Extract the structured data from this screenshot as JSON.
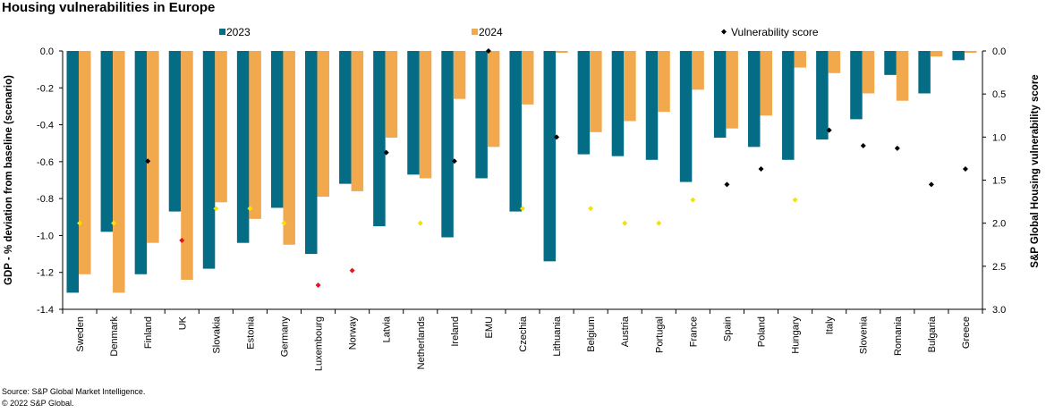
{
  "title": "Housing vulnerabilities in Europe",
  "source": "Source: S&P Global Market Intelligence.",
  "copyright": "© 2022 S&P Global.",
  "colors": {
    "s2023": "#046C84",
    "s2024": "#F2A84C",
    "score_black": "#000000",
    "score_yellow": "#F6E100",
    "score_red": "#E8141B"
  },
  "chart_data": {
    "type": "bar",
    "title": "Housing vulnerabilities in Europe",
    "ylabel": "GDP - % deviation from baseline (scenario)",
    "y2label": "S&P Global Housing vulnerability score",
    "ylim": [
      -1.4,
      0.0
    ],
    "y2lim": [
      0.0,
      3.0
    ],
    "y2_reversed": true,
    "y_ticks": [
      "0.0",
      "-0.2",
      "-0.4",
      "-0.6",
      "-0.8",
      "-1.0",
      "-1.2",
      "-1.4"
    ],
    "y2_ticks": [
      "0.0",
      "0.5",
      "1.0",
      "1.5",
      "2.0",
      "2.5",
      "3.0"
    ],
    "legend_position": "top",
    "categories": [
      "Sweden",
      "Denmark",
      "Finland",
      "UK",
      "Slovakia",
      "Estonia",
      "Germany",
      "Luxembourg",
      "Norway",
      "Latvia",
      "Netherlands",
      "Ireland",
      "EMU",
      "Czechia",
      "Lithuania",
      "Belgium",
      "Austria",
      "Portugal",
      "France",
      "Spain",
      "Poland",
      "Hungary",
      "Italy",
      "Slovenia",
      "Romania",
      "Bulgaria",
      "Greece"
    ],
    "series": [
      {
        "name": "2023",
        "type": "bar",
        "axis": "left",
        "values": [
          -1.31,
          -0.98,
          -1.21,
          -0.87,
          -1.18,
          -1.04,
          -0.85,
          -1.1,
          -0.72,
          -0.95,
          -0.67,
          -1.01,
          -0.69,
          -0.87,
          -1.14,
          -0.56,
          -0.57,
          -0.59,
          -0.71,
          -0.47,
          -0.52,
          -0.59,
          -0.48,
          -0.37,
          -0.13,
          -0.23,
          -0.05
        ]
      },
      {
        "name": "2024",
        "type": "bar",
        "axis": "left",
        "values": [
          -1.21,
          -1.31,
          -1.04,
          -1.24,
          -0.82,
          -0.91,
          -1.05,
          -0.79,
          -0.76,
          -0.47,
          -0.69,
          -0.26,
          -0.52,
          -0.29,
          -0.01,
          -0.44,
          -0.38,
          -0.33,
          -0.21,
          -0.42,
          -0.35,
          -0.09,
          -0.12,
          -0.23,
          -0.27,
          -0.03,
          -0.01
        ]
      },
      {
        "name": "Vulnerability score",
        "type": "scatter",
        "axis": "right",
        "values": [
          2.0,
          2.0,
          1.28,
          2.2,
          1.83,
          1.83,
          2.0,
          2.72,
          2.55,
          1.18,
          2.0,
          1.28,
          0.0,
          1.83,
          1.0,
          1.83,
          2.0,
          2.0,
          1.73,
          1.55,
          1.37,
          1.73,
          0.92,
          1.1,
          1.13,
          1.55,
          1.37
        ],
        "point_colors": [
          "yellow",
          "yellow",
          "black",
          "red",
          "yellow",
          "yellow",
          "yellow",
          "red",
          "red",
          "black",
          "yellow",
          "black",
          "black",
          "yellow",
          "black",
          "yellow",
          "yellow",
          "yellow",
          "yellow",
          "black",
          "black",
          "yellow",
          "black",
          "black",
          "black",
          "black",
          "black"
        ]
      }
    ]
  }
}
